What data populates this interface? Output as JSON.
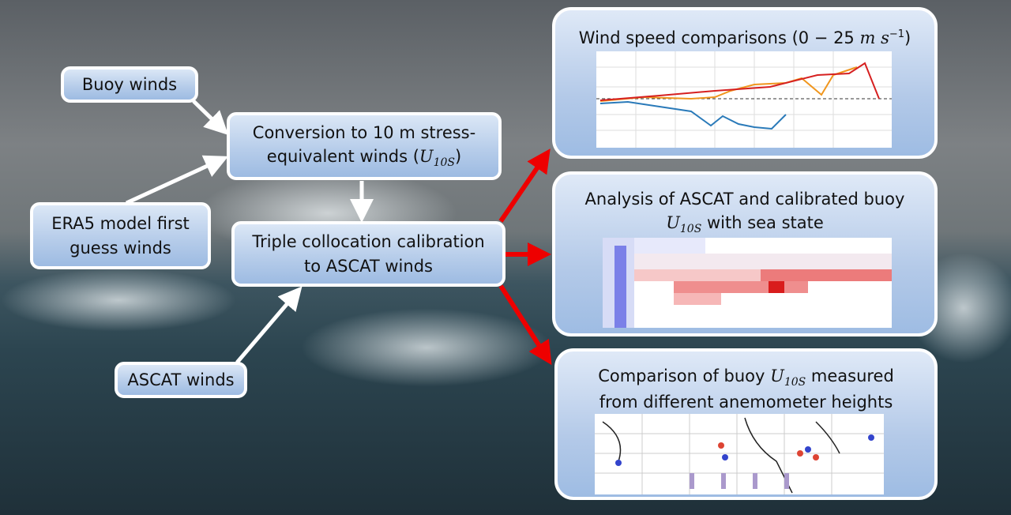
{
  "inputs": {
    "buoy": "Buoy winds",
    "era5": [
      "ERA5 model first",
      "guess winds"
    ],
    "ascat": "ASCAT winds"
  },
  "steps": {
    "conversion": {
      "line1": "Conversion to 10 m stress-",
      "line2": "equivalent winds (",
      "symbol": "U",
      "subscript": "10S",
      "close": ")"
    },
    "triple": [
      "Triple collocation calibration",
      "to ASCAT winds"
    ]
  },
  "outputs": {
    "wind_speed": {
      "text": "Wind speed comparisons (",
      "range": "0 − 25 ",
      "unit": "m s",
      "exponent": "−1",
      "close": ")"
    },
    "sea_state": {
      "line1": "Analysis of ASCAT and calibrated buoy",
      "symbol": "U",
      "subscript": "10S",
      "rest": " with sea state"
    },
    "heights": {
      "before": "Comparison of buoy ",
      "symbol": "U",
      "subscript": "10S",
      "after": " measured",
      "line2": "from different anemometer heights"
    }
  }
}
